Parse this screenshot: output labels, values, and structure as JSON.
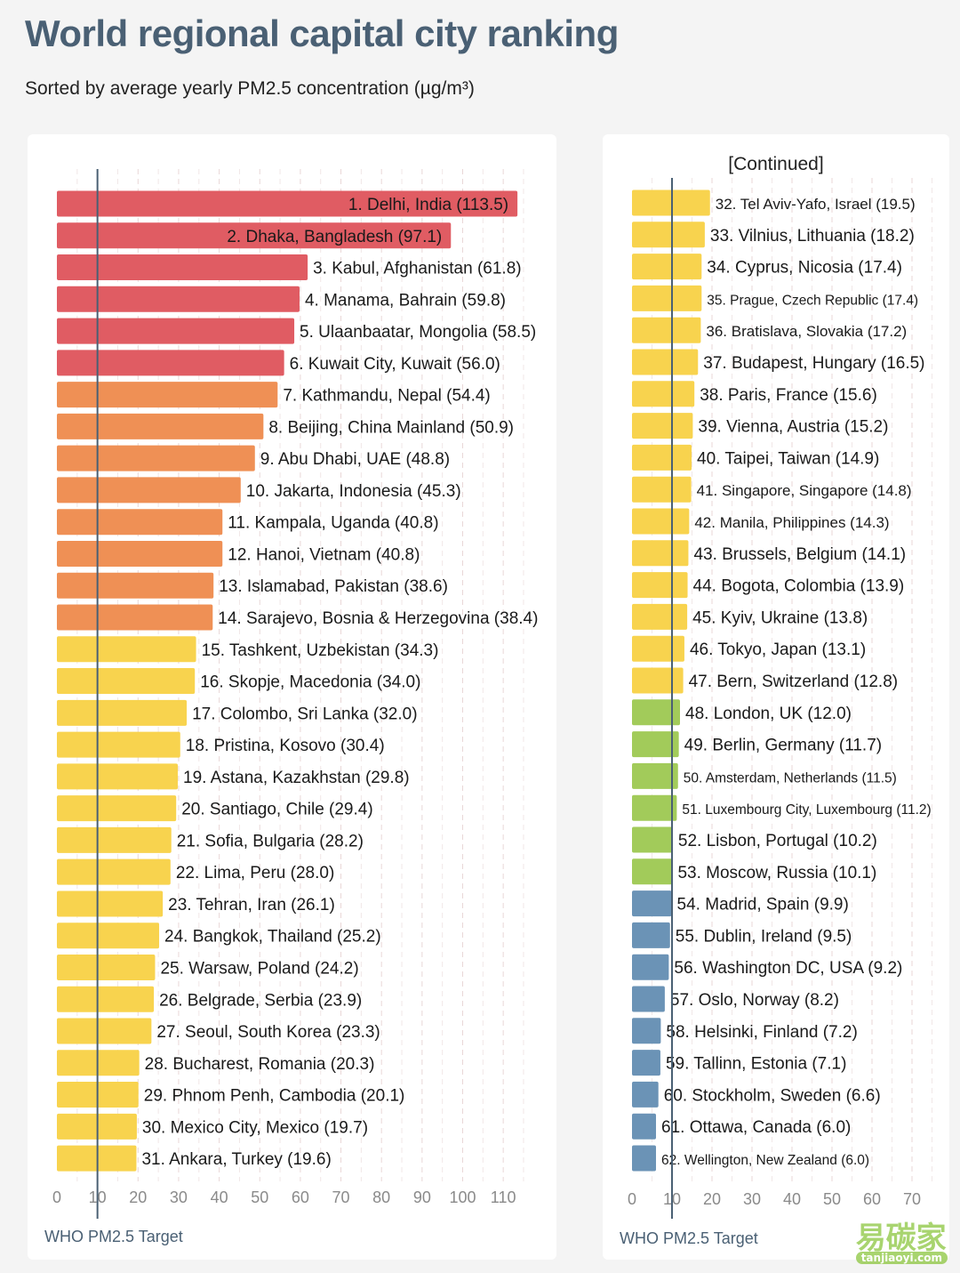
{
  "title": "World regional capital city ranking",
  "subtitle": "Sorted by average yearly PM2.5 concentration (µg/m³)",
  "continued_label": "[Continued]",
  "who_label": "WHO PM2.5 Target",
  "who_target": 10,
  "watermark": {
    "text": "易碳家",
    "sub": "tanjiaoyi.com"
  },
  "colors": {
    "red": "#e05c63",
    "orange": "#ef9055",
    "yellow": "#f8d34e",
    "green": "#a2cb5a",
    "blue": "#6b93b6",
    "who_line": "#4a6074"
  },
  "chart_data": [
    {
      "type": "bar",
      "orientation": "horizontal",
      "xlim": [
        0,
        115
      ],
      "xticks": [
        0,
        10,
        20,
        30,
        40,
        50,
        60,
        70,
        80,
        90,
        100,
        110
      ],
      "grid": true,
      "items": [
        {
          "label": "1. Delhi, India (113.5)",
          "value": 113.5,
          "color": "red"
        },
        {
          "label": "2. Dhaka, Bangladesh (97.1)",
          "value": 97.1,
          "color": "red"
        },
        {
          "label": "3. Kabul, Afghanistan (61.8)",
          "value": 61.8,
          "color": "red"
        },
        {
          "label": "4. Manama, Bahrain (59.8)",
          "value": 59.8,
          "color": "red"
        },
        {
          "label": "5. Ulaanbaatar, Mongolia (58.5)",
          "value": 58.5,
          "color": "red"
        },
        {
          "label": "6. Kuwait City, Kuwait (56.0)",
          "value": 56.0,
          "color": "red"
        },
        {
          "label": "7. Kathmandu, Nepal (54.4)",
          "value": 54.4,
          "color": "orange"
        },
        {
          "label": "8. Beijing, China Mainland (50.9)",
          "value": 50.9,
          "color": "orange"
        },
        {
          "label": "9. Abu Dhabi, UAE (48.8)",
          "value": 48.8,
          "color": "orange"
        },
        {
          "label": "10. Jakarta, Indonesia (45.3)",
          "value": 45.3,
          "color": "orange"
        },
        {
          "label": "11. Kampala, Uganda (40.8)",
          "value": 40.8,
          "color": "orange"
        },
        {
          "label": "12. Hanoi, Vietnam (40.8)",
          "value": 40.8,
          "color": "orange"
        },
        {
          "label": "13. Islamabad, Pakistan (38.6)",
          "value": 38.6,
          "color": "orange"
        },
        {
          "label": "14. Sarajevo, Bosnia & Herzegovina (38.4)",
          "value": 38.4,
          "color": "orange"
        },
        {
          "label": "15. Tashkent, Uzbekistan (34.3)",
          "value": 34.3,
          "color": "yellow"
        },
        {
          "label": "16. Skopje, Macedonia (34.0)",
          "value": 34.0,
          "color": "yellow"
        },
        {
          "label": "17. Colombo, Sri Lanka (32.0)",
          "value": 32.0,
          "color": "yellow"
        },
        {
          "label": "18. Pristina, Kosovo (30.4)",
          "value": 30.4,
          "color": "yellow"
        },
        {
          "label": "19. Astana, Kazakhstan (29.8)",
          "value": 29.8,
          "color": "yellow"
        },
        {
          "label": "20. Santiago, Chile (29.4)",
          "value": 29.4,
          "color": "yellow"
        },
        {
          "label": "21. Sofia, Bulgaria (28.2)",
          "value": 28.2,
          "color": "yellow"
        },
        {
          "label": "22. Lima, Peru (28.0)",
          "value": 28.0,
          "color": "yellow"
        },
        {
          "label": "23. Tehran, Iran (26.1)",
          "value": 26.1,
          "color": "yellow"
        },
        {
          "label": "24. Bangkok, Thailand (25.2)",
          "value": 25.2,
          "color": "yellow"
        },
        {
          "label": "25. Warsaw, Poland (24.2)",
          "value": 24.2,
          "color": "yellow"
        },
        {
          "label": "26. Belgrade, Serbia (23.9)",
          "value": 23.9,
          "color": "yellow"
        },
        {
          "label": "27. Seoul, South Korea (23.3)",
          "value": 23.3,
          "color": "yellow"
        },
        {
          "label": "28. Bucharest, Romania (20.3)",
          "value": 20.3,
          "color": "yellow"
        },
        {
          "label": "29. Phnom Penh, Cambodia (20.1)",
          "value": 20.1,
          "color": "yellow"
        },
        {
          "label": "30. Mexico City, Mexico (19.7)",
          "value": 19.7,
          "color": "yellow"
        },
        {
          "label": "31. Ankara, Turkey (19.6)",
          "value": 19.6,
          "color": "yellow"
        }
      ]
    },
    {
      "type": "bar",
      "orientation": "horizontal",
      "xlim": [
        0,
        70
      ],
      "xticks": [
        0,
        10,
        20,
        30,
        40,
        50,
        60,
        70
      ],
      "grid": true,
      "items": [
        {
          "label": "32. Tel Aviv-Yafo, Israel (19.5)",
          "value": 19.5,
          "color": "yellow"
        },
        {
          "label": "33. Vilnius, Lithuania (18.2)",
          "value": 18.2,
          "color": "yellow"
        },
        {
          "label": "34. Cyprus, Nicosia (17.4)",
          "value": 17.4,
          "color": "yellow"
        },
        {
          "label": "35. Prague, Czech Republic (17.4)",
          "value": 17.4,
          "color": "yellow"
        },
        {
          "label": "36. Bratislava, Slovakia (17.2)",
          "value": 17.2,
          "color": "yellow"
        },
        {
          "label": "37. Budapest, Hungary (16.5)",
          "value": 16.5,
          "color": "yellow"
        },
        {
          "label": "38. Paris, France (15.6)",
          "value": 15.6,
          "color": "yellow"
        },
        {
          "label": "39. Vienna, Austria (15.2)",
          "value": 15.2,
          "color": "yellow"
        },
        {
          "label": "40. Taipei, Taiwan (14.9)",
          "value": 14.9,
          "color": "yellow"
        },
        {
          "label": "41. Singapore, Singapore (14.8)",
          "value": 14.8,
          "color": "yellow"
        },
        {
          "label": "42. Manila, Philippines (14.3)",
          "value": 14.3,
          "color": "yellow"
        },
        {
          "label": "43. Brussels, Belgium (14.1)",
          "value": 14.1,
          "color": "yellow"
        },
        {
          "label": "44. Bogota, Colombia (13.9)",
          "value": 13.9,
          "color": "yellow"
        },
        {
          "label": "45. Kyiv, Ukraine (13.8)",
          "value": 13.8,
          "color": "yellow"
        },
        {
          "label": "46. Tokyo, Japan (13.1)",
          "value": 13.1,
          "color": "yellow"
        },
        {
          "label": "47. Bern, Switzerland (12.8)",
          "value": 12.8,
          "color": "yellow"
        },
        {
          "label": "48. London, UK (12.0)",
          "value": 12.0,
          "color": "green"
        },
        {
          "label": "49. Berlin, Germany (11.7)",
          "value": 11.7,
          "color": "green"
        },
        {
          "label": "50. Amsterdam, Netherlands (11.5)",
          "value": 11.5,
          "color": "green"
        },
        {
          "label": "51. Luxembourg City, Luxembourg (11.2)",
          "value": 11.2,
          "color": "green"
        },
        {
          "label": "52. Lisbon, Portugal (10.2)",
          "value": 10.2,
          "color": "green"
        },
        {
          "label": "53. Moscow, Russia (10.1)",
          "value": 10.1,
          "color": "green"
        },
        {
          "label": "54. Madrid, Spain (9.9)",
          "value": 9.9,
          "color": "blue"
        },
        {
          "label": "55. Dublin, Ireland (9.5)",
          "value": 9.5,
          "color": "blue"
        },
        {
          "label": "56. Washington DC, USA (9.2)",
          "value": 9.2,
          "color": "blue"
        },
        {
          "label": "57. Oslo, Norway (8.2)",
          "value": 8.2,
          "color": "blue"
        },
        {
          "label": "58. Helsinki, Finland (7.2)",
          "value": 7.2,
          "color": "blue"
        },
        {
          "label": "59. Tallinn, Estonia (7.1)",
          "value": 7.1,
          "color": "blue"
        },
        {
          "label": "60. Stockholm, Sweden (6.6)",
          "value": 6.6,
          "color": "blue"
        },
        {
          "label": "61. Ottawa, Canada (6.0)",
          "value": 6.0,
          "color": "blue"
        },
        {
          "label": "62. Wellington, New Zealand (6.0)",
          "value": 6.0,
          "color": "blue"
        }
      ]
    }
  ]
}
